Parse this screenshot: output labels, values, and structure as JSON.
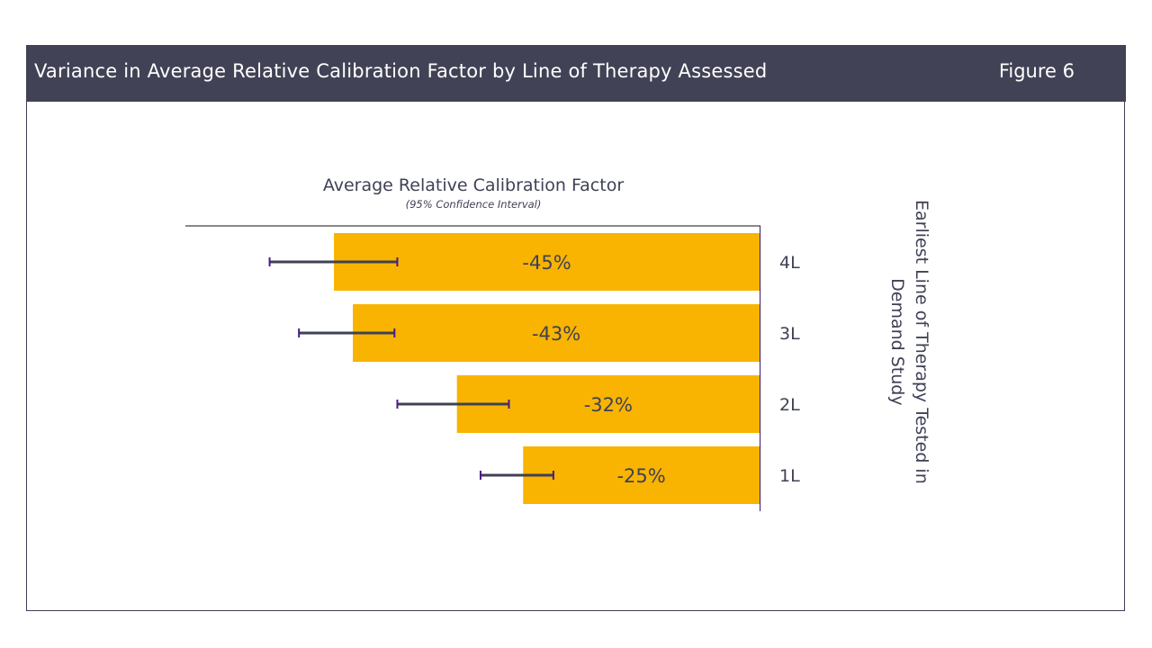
{
  "header": {
    "title": "Variance in Average Relative Calibration Factor by Line of Therapy Assessed",
    "figure_label": "Figure 6"
  },
  "colors": {
    "header_bg": "#414255",
    "bar": "#F8B400",
    "errorbar": "#3f4155",
    "errorbar_cap": "#4b1a8c",
    "text": "#3f4155"
  },
  "chart_data": {
    "type": "bar",
    "orientation": "horizontal",
    "title": "Average Relative Calibration Factor",
    "subtitle": "(95% Confidence Interval)",
    "ylabel_lines": [
      "Earliest Line of Therapy Tested in",
      "Demand Study"
    ],
    "ylabel_position": "right",
    "categories": [
      "4L",
      "3L",
      "2L",
      "1L"
    ],
    "values": [
      -45,
      -43,
      -32,
      -25
    ],
    "value_labels": [
      "-45%",
      "-43%",
      "-32%",
      "-25%"
    ],
    "error_bars_estimated": {
      "note": "approximate, read from drawn marks; not printed in chart",
      "low": [
        -51.8,
        -48.7,
        -38.3,
        -29.5
      ],
      "high": [
        -38.3,
        -38.6,
        -26.5,
        -21.8
      ]
    },
    "xlim": [
      -60,
      0
    ],
    "grid": false
  }
}
